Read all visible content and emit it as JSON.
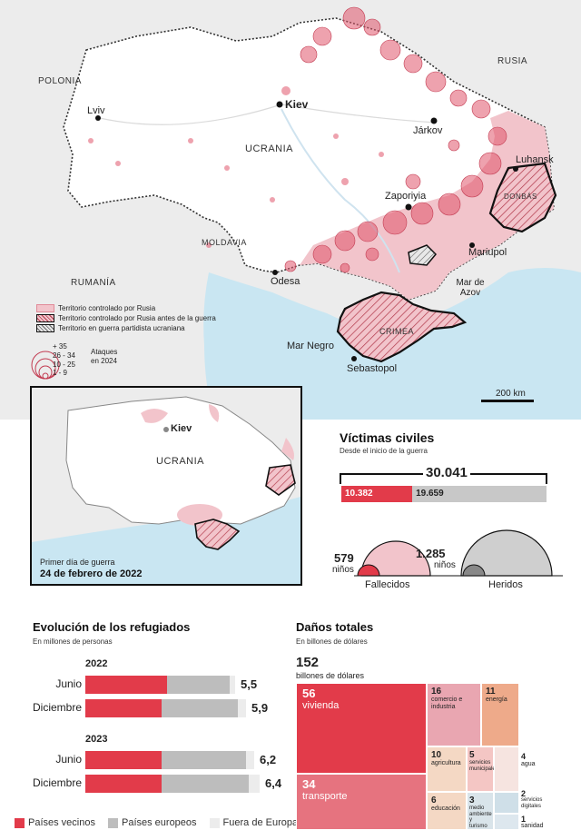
{
  "map": {
    "countries": {
      "polonia": "POLONIA",
      "rusia": "RUSIA",
      "ucrania": "UCRANIA",
      "moldavia": "MOLDAVIA",
      "rumania": "RUMANÍA",
      "crimea": "CRIMEA",
      "donbas": "DONBÁS"
    },
    "cities": {
      "lviv": "Lviv",
      "kiev": "Kiev",
      "jarkov": "Járkov",
      "zaporiyia": "Zaporiyia",
      "luhansk": "Luhansk",
      "mariupol": "Mariupol",
      "odesa": "Odesa",
      "sebastopol": "Sebastopol"
    },
    "seas": {
      "negro": "Mar Negro",
      "azov": "Mar de Azov"
    },
    "scale": "200 km",
    "legend": {
      "items": [
        "Territorio controlado por Rusia",
        "Territorio controlado por Rusia antes de la guerra",
        "Territorio en guerra partidista ucraniana"
      ],
      "size_classes": [
        "+ 35",
        "26 - 34",
        "10 - 25",
        "1 - 9"
      ],
      "attacks_label_1": "Ataques",
      "attacks_label_2": "en 2024"
    },
    "colors": {
      "russian": "#f2c4cb",
      "attack": "#e0566b",
      "sea": "#c9e6f2",
      "land": "#ffffff",
      "outside": "#ececec"
    }
  },
  "inset": {
    "kiev": "Kiev",
    "ucrania": "UCRANIA",
    "caption_1": "Primer día de guerra",
    "caption_2": "24 de febrero de 2022"
  },
  "victims": {
    "title": "Víctimas civiles",
    "subtitle": "Desde el inicio de la guerra",
    "total": "30.041",
    "dead": "10.382",
    "wounded": "19.659",
    "dead_value": 10382,
    "wounded_value": 19659,
    "children_dead": "579",
    "children_wounded": "1.285",
    "ninos": "niños",
    "fallecidos": "Fallecidos",
    "heridos": "Heridos"
  },
  "refugees": {
    "title": "Evolución de los refugiados",
    "subtitle": "En millones de personas",
    "year_2022": "2022",
    "year_2023": "2023",
    "rows": [
      {
        "label": "Junio",
        "total": "5,5"
      },
      {
        "label": "Diciembre",
        "total": "5,9"
      },
      {
        "label": "Junio",
        "total": "6,2"
      },
      {
        "label": "Diciembre",
        "total": "6,4"
      }
    ],
    "legend": [
      "Países vecinos",
      "Países europeos",
      "Fuera de Europa"
    ]
  },
  "damage": {
    "title": "Daños totales",
    "subtitle": "En billones de dólares",
    "total": "152",
    "total_label": "billones de dólares",
    "cells": [
      {
        "value": "56",
        "label": "vivienda"
      },
      {
        "value": "34",
        "label": "transporte"
      },
      {
        "value": "16",
        "label": "comercio e industria"
      },
      {
        "value": "11",
        "label": "energía"
      },
      {
        "value": "10",
        "label": "agricultura"
      },
      {
        "value": "5",
        "label": "servicios municipales"
      },
      {
        "value": "6",
        "label": "educación"
      },
      {
        "value": "3",
        "label": "medio ambiente y turismo"
      },
      {
        "value": "4",
        "label": "agua"
      },
      {
        "value": "2",
        "label": "servicios digitales"
      },
      {
        "value": "1",
        "label": "sanidad"
      }
    ]
  },
  "chart_data": [
    {
      "type": "bar",
      "title": "Evolución de los refugiados",
      "subtitle": "En millones de personas",
      "categories": [
        "Junio 2022",
        "Diciembre 2022",
        "Junio 2023",
        "Diciembre 2023"
      ],
      "series": [
        {
          "name": "Países vecinos",
          "values": [
            3.0,
            2.8,
            2.8,
            2.8
          ]
        },
        {
          "name": "Países europeos",
          "values": [
            2.3,
            2.8,
            3.1,
            3.2
          ]
        },
        {
          "name": "Fuera de Europa",
          "values": [
            0.2,
            0.3,
            0.3,
            0.4
          ]
        }
      ],
      "totals": [
        5.5,
        5.9,
        6.2,
        6.4
      ]
    },
    {
      "type": "bar",
      "title": "Víctimas civiles",
      "categories": [
        "Fallecidos",
        "Heridos"
      ],
      "values": [
        10382,
        19659
      ],
      "total": 30041
    },
    {
      "type": "table",
      "title": "Daños totales",
      "categories": [
        "vivienda",
        "transporte",
        "comercio e industria",
        "energía",
        "agricultura",
        "servicios municipales",
        "educación",
        "medio ambiente y turismo",
        "agua",
        "servicios digitales",
        "sanidad"
      ],
      "values": [
        56,
        34,
        16,
        11,
        10,
        5,
        6,
        3,
        4,
        2,
        1
      ],
      "total": 152
    }
  ]
}
